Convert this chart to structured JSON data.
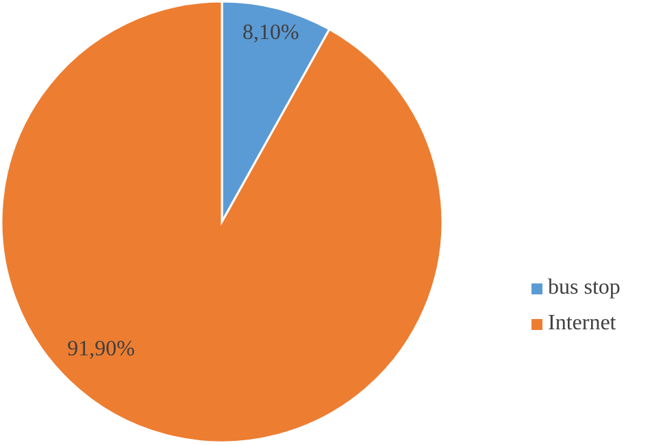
{
  "chart_data": {
    "type": "pie",
    "categories": [
      "bus stop",
      "Internet"
    ],
    "values": [
      8.1,
      91.9
    ],
    "colors": [
      "#5b9bd5",
      "#ed7d31"
    ],
    "value_labels": [
      "8,10%",
      "91,90%"
    ],
    "legend": "right"
  }
}
